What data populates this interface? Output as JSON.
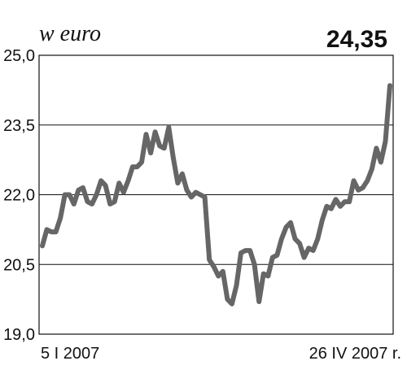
{
  "chart_data": {
    "type": "line",
    "unit_label": "w euro",
    "latest_value": "24,35",
    "ylim": [
      19.0,
      25.0
    ],
    "y_ticks": [
      "25,0",
      "23,5",
      "22,0",
      "20,5",
      "19,0"
    ],
    "y_tick_values": [
      25.0,
      23.5,
      22.0,
      20.5,
      19.0
    ],
    "x_start_label": "5 I 2007",
    "x_end_label": "26 IV 2007 r.",
    "grid": "horizontal",
    "line_color": "#666666",
    "values": [
      20.9,
      21.25,
      21.2,
      21.2,
      21.5,
      22.0,
      22.0,
      21.8,
      22.1,
      22.15,
      21.85,
      21.8,
      22.0,
      22.3,
      22.2,
      21.8,
      21.85,
      22.25,
      22.05,
      22.3,
      22.6,
      22.6,
      22.7,
      23.3,
      22.9,
      23.35,
      23.05,
      23.0,
      23.45,
      22.8,
      22.25,
      22.45,
      22.1,
      21.95,
      22.05,
      22.0,
      21.95,
      20.6,
      20.45,
      20.25,
      20.35,
      19.75,
      19.65,
      20.05,
      20.75,
      20.8,
      20.8,
      20.5,
      19.7,
      20.3,
      20.25,
      20.65,
      20.7,
      21.05,
      21.3,
      21.4,
      21.05,
      20.95,
      20.65,
      20.85,
      20.8,
      21.05,
      21.45,
      21.75,
      21.7,
      21.9,
      21.75,
      21.85,
      21.85,
      22.3,
      22.1,
      22.15,
      22.3,
      22.55,
      23.0,
      22.7,
      23.15,
      24.35
    ]
  }
}
